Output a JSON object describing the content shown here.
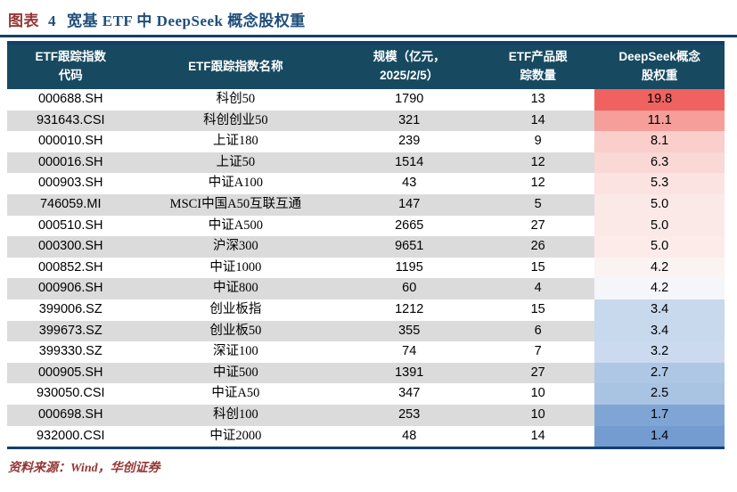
{
  "title": {
    "label": "图表",
    "number": "4",
    "text": "宽基 ETF 中 DeepSeek 概念股权重"
  },
  "colors": {
    "header_bg": "#174A60",
    "header_text": "#FFFFFF",
    "alt_row_bg": "#DBDBDB",
    "rule_navy": "#123F6B",
    "title_label_red": "#953735",
    "title_text_blue": "#1F4E79",
    "footer_red": "#953735",
    "heat_max_red": "#F0625F",
    "heat_min_blue": "#749CD1"
  },
  "table": {
    "headers": [
      {
        "id": "index-code",
        "line1": "ETF跟踪指数",
        "line2": "代码"
      },
      {
        "id": "index-name",
        "line1": "ETF跟踪指数名称",
        "line2": ""
      },
      {
        "id": "scale",
        "line1": "规模（亿元，",
        "line2": "2025/2/5）"
      },
      {
        "id": "etf-count",
        "line1": "ETF产品跟",
        "line2": "踪数量"
      },
      {
        "id": "deepseek-weight",
        "line1": "DeepSeek概念",
        "line2": "股权重"
      }
    ],
    "rows": [
      {
        "code": "000688.SH",
        "name": "科创50",
        "scale": "1790",
        "count": "13",
        "weight": "19.8",
        "heat": "#F0625F"
      },
      {
        "code": "931643.CSI",
        "name": "科创创业50",
        "scale": "321",
        "count": "14",
        "weight": "11.1",
        "heat": "#F59E9A"
      },
      {
        "code": "000010.SH",
        "name": "上证180",
        "scale": "239",
        "count": "9",
        "weight": "8.1",
        "heat": "#F9CECB"
      },
      {
        "code": "000016.SH",
        "name": "上证50",
        "scale": "1514",
        "count": "12",
        "weight": "6.3",
        "heat": "#F9D8D6"
      },
      {
        "code": "000903.SH",
        "name": "中证A100",
        "scale": "43",
        "count": "12",
        "weight": "5.3",
        "heat": "#FBE3E1"
      },
      {
        "code": "746059.MI",
        "name": "MSCI中国A50互联互通",
        "scale": "147",
        "count": "5",
        "weight": "5.0",
        "heat": "#FBE9E7"
      },
      {
        "code": "000510.SH",
        "name": "中证A500",
        "scale": "2665",
        "count": "27",
        "weight": "5.0",
        "heat": "#FBE9E7"
      },
      {
        "code": "000300.SH",
        "name": "沪深300",
        "scale": "9651",
        "count": "26",
        "weight": "5.0",
        "heat": "#FCEBE9"
      },
      {
        "code": "000852.SH",
        "name": "中证1000",
        "scale": "1195",
        "count": "15",
        "weight": "4.2",
        "heat": "#FAF3F2"
      },
      {
        "code": "000906.SH",
        "name": "中证800",
        "scale": "60",
        "count": "4",
        "weight": "4.2",
        "heat": "#F4F6FA"
      },
      {
        "code": "399006.SZ",
        "name": "创业板指",
        "scale": "1212",
        "count": "15",
        "weight": "3.4",
        "heat": "#C8D8ED"
      },
      {
        "code": "399673.SZ",
        "name": "创业板50",
        "scale": "355",
        "count": "6",
        "weight": "3.4",
        "heat": "#C8D8ED"
      },
      {
        "code": "399330.SZ",
        "name": "深证100",
        "scale": "74",
        "count": "7",
        "weight": "3.2",
        "heat": "#CBDAEE"
      },
      {
        "code": "000905.SH",
        "name": "中证500",
        "scale": "1391",
        "count": "27",
        "weight": "2.7",
        "heat": "#AEC7E5"
      },
      {
        "code": "930050.CSI",
        "name": "中证A50",
        "scale": "347",
        "count": "10",
        "weight": "2.5",
        "heat": "#A9C3E3"
      },
      {
        "code": "000698.SH",
        "name": "科创100",
        "scale": "253",
        "count": "10",
        "weight": "1.7",
        "heat": "#7FA5D5"
      },
      {
        "code": "932000.CSI",
        "name": "中证2000",
        "scale": "48",
        "count": "14",
        "weight": "1.4",
        "heat": "#749CD1"
      }
    ]
  },
  "footer": {
    "source_text": "资料来源：Wind，华创证券"
  }
}
